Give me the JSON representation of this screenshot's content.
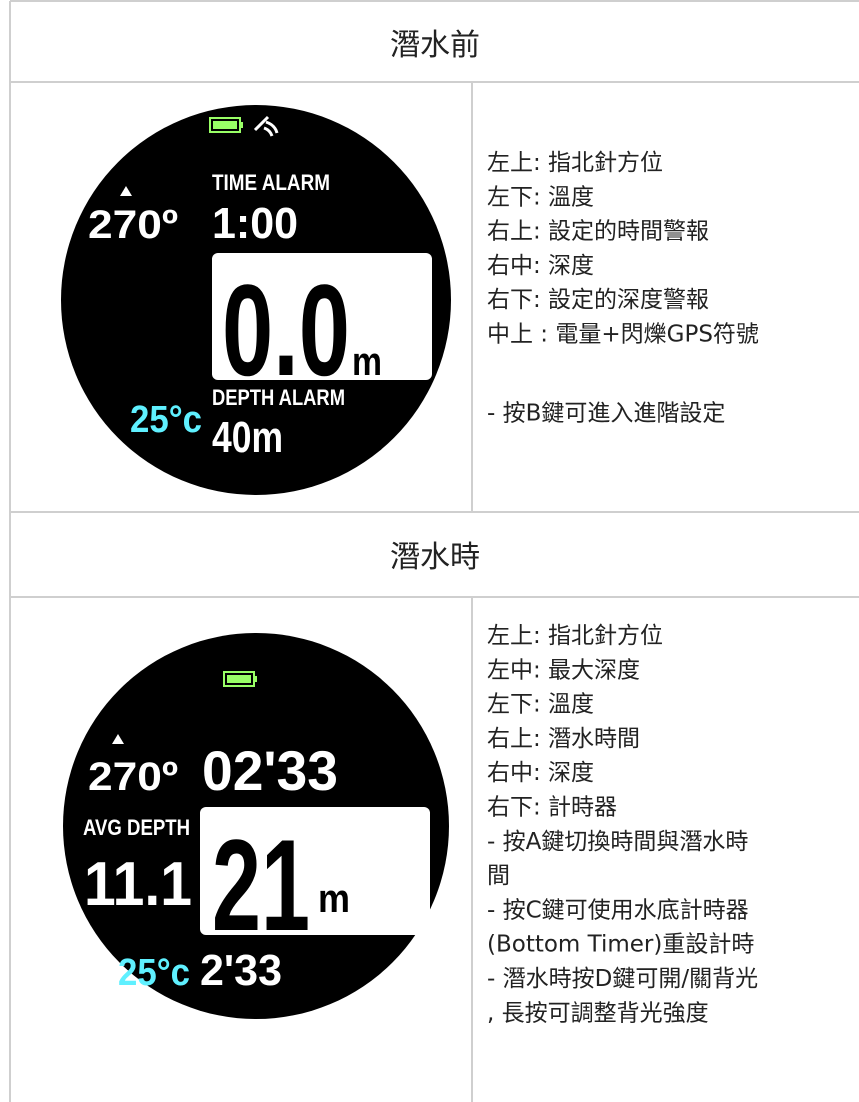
{
  "sections": [
    {
      "title": "潛水前",
      "watch": {
        "top_label": "TIME ALARM",
        "top_value": "1:00",
        "heading": "270º",
        "depth": "0.0",
        "unit": "m",
        "bottom_label": "DEPTH ALARM",
        "temperature": "25°c",
        "bottom_value": "40m"
      },
      "notes": [
        "左上: 指北針方位",
        "左下: 溫度",
        "右上: 設定的時間警報",
        "右中: 深度",
        "右下: 設定的深度警報",
        "中上 : 電量+閃爍GPS符號",
        "- 按B鍵可進入進階設定"
      ]
    },
    {
      "title": "潛水時",
      "watch": {
        "top_value": "02'33",
        "heading": "270º",
        "side_label": "AVG DEPTH",
        "side_value": "11.1",
        "depth": "21",
        "unit": "m",
        "temperature": "25°c",
        "bottom_value": "2'33"
      },
      "notes": [
        "左上: 指北針方位",
        "左中: 最大深度",
        "左下: 溫度",
        "右上: 潛水時間",
        "右中: 深度",
        "右下: 計時器",
        "- 按A鍵切換時間與潛水時",
        "間",
        "- 按C鍵可使用水底計時器",
        "(Bottom Timer)重設計時",
        "- 潛水時按D鍵可開/關背光",
        ", 長按可調整背光強度"
      ]
    }
  ]
}
